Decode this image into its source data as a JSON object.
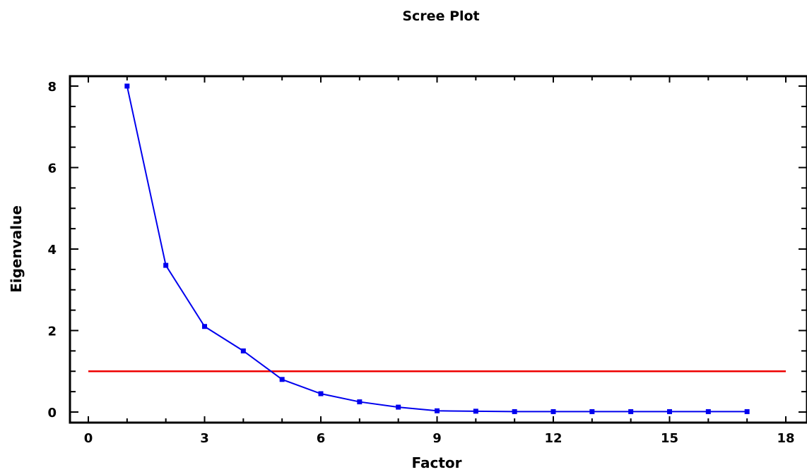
{
  "chart_data": {
    "type": "line",
    "title": "Scree Plot",
    "xlabel": "Factor",
    "ylabel": "Eigenvalue",
    "xlim": [
      0,
      18
    ],
    "ylim": [
      0,
      8
    ],
    "x_ticks": [
      "0",
      "3",
      "6",
      "9",
      "12",
      "15",
      "18"
    ],
    "y_ticks": [
      "0",
      "2",
      "4",
      "6",
      "8"
    ],
    "grid": false,
    "series": [
      {
        "color": "#0000ee",
        "x": [
          1,
          2,
          3,
          4,
          5,
          6,
          7,
          8,
          9,
          10,
          11,
          12,
          13,
          14,
          15,
          16,
          17
        ],
        "y": [
          8.0,
          3.6,
          2.1,
          1.5,
          0.8,
          0.45,
          0.25,
          0.12,
          0.03,
          0.02,
          0.01,
          0.01,
          0.01,
          0.01,
          0.01,
          0.01,
          0.01
        ]
      }
    ],
    "reference_line": {
      "y": 1,
      "x_range": [
        0,
        18
      ],
      "color": "#ee0000"
    }
  }
}
